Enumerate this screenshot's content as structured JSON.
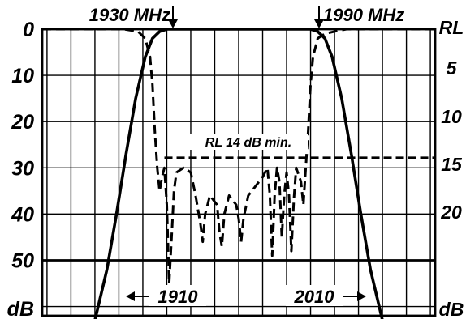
{
  "chart_data": {
    "type": "line",
    "title": "",
    "x_unit": "MHz",
    "xlim": [
      1878,
      2042
    ],
    "left_axis": {
      "label": "dB",
      "ticks": [
        "0",
        "10",
        "20",
        "30",
        "40",
        "50"
      ],
      "ylim": [
        0,
        62
      ],
      "inverted": true
    },
    "right_axis": {
      "label": "RL",
      "ticks": [
        "5",
        "10",
        "15",
        "20"
      ]
    },
    "grid": true,
    "annotations": {
      "passband_low": "1930 MHz",
      "passband_high": "1990 MHz",
      "stop_low": "1910",
      "stop_high": "2010",
      "rl_spec": "RL 14 dB min."
    },
    "reference_lines": [
      {
        "style": "solid",
        "y": 50
      },
      {
        "style": "dashed",
        "y": 27.8,
        "x_start": 1929
      }
    ],
    "series": [
      {
        "style": "solid",
        "points": [
          [
            1900,
            63
          ],
          [
            1905,
            52
          ],
          [
            1909,
            40
          ],
          [
            1913,
            27
          ],
          [
            1917,
            15
          ],
          [
            1921,
            6
          ],
          [
            1924,
            2
          ],
          [
            1927,
            0.5
          ],
          [
            1930,
            0
          ],
          [
            1960,
            0
          ],
          [
            1990,
            0
          ],
          [
            1993,
            0.5
          ],
          [
            1996,
            2
          ],
          [
            1999,
            6
          ],
          [
            2003,
            15
          ],
          [
            2007,
            27
          ],
          [
            2011,
            40
          ],
          [
            2015,
            52
          ],
          [
            2020,
            63
          ]
        ]
      },
      {
        "style": "dashed",
        "points": [
          [
            1878,
            0
          ],
          [
            1912,
            0
          ],
          [
            1918,
            0.5
          ],
          [
            1921,
            2
          ],
          [
            1923,
            6
          ],
          [
            1924,
            12
          ],
          [
            1925,
            22
          ],
          [
            1926,
            30
          ],
          [
            1927,
            35
          ],
          [
            1928,
            32
          ],
          [
            1929,
            30
          ],
          [
            1930,
            38
          ],
          [
            1931,
            55
          ],
          [
            1932,
            45
          ],
          [
            1933,
            35
          ],
          [
            1934,
            31
          ],
          [
            1937,
            30
          ],
          [
            1940,
            31
          ],
          [
            1942,
            36
          ],
          [
            1944,
            42
          ],
          [
            1945,
            46
          ],
          [
            1946,
            40
          ],
          [
            1948,
            36
          ],
          [
            1951,
            38
          ],
          [
            1952,
            44
          ],
          [
            1953,
            47
          ],
          [
            1954,
            40
          ],
          [
            1956,
            36
          ],
          [
            1959,
            38
          ],
          [
            1960,
            41
          ],
          [
            1961,
            46
          ],
          [
            1962,
            41
          ],
          [
            1964,
            36
          ],
          [
            1967,
            34
          ],
          [
            1970,
            32
          ],
          [
            1972,
            30
          ],
          [
            1973,
            36
          ],
          [
            1974,
            49
          ],
          [
            1975,
            36
          ],
          [
            1976,
            30
          ],
          [
            1977,
            33
          ],
          [
            1978,
            45
          ],
          [
            1979,
            36
          ],
          [
            1980,
            31
          ],
          [
            1981,
            36
          ],
          [
            1982,
            48
          ],
          [
            1983,
            37
          ],
          [
            1984,
            30
          ],
          [
            1986,
            33
          ],
          [
            1987,
            38
          ],
          [
            1988,
            30
          ],
          [
            1989,
            22
          ],
          [
            1990,
            12
          ],
          [
            1991,
            6
          ],
          [
            1993,
            2
          ],
          [
            1996,
            1
          ],
          [
            2000,
            0.5
          ],
          [
            2005,
            0
          ],
          [
            2042,
            0
          ]
        ]
      }
    ]
  }
}
